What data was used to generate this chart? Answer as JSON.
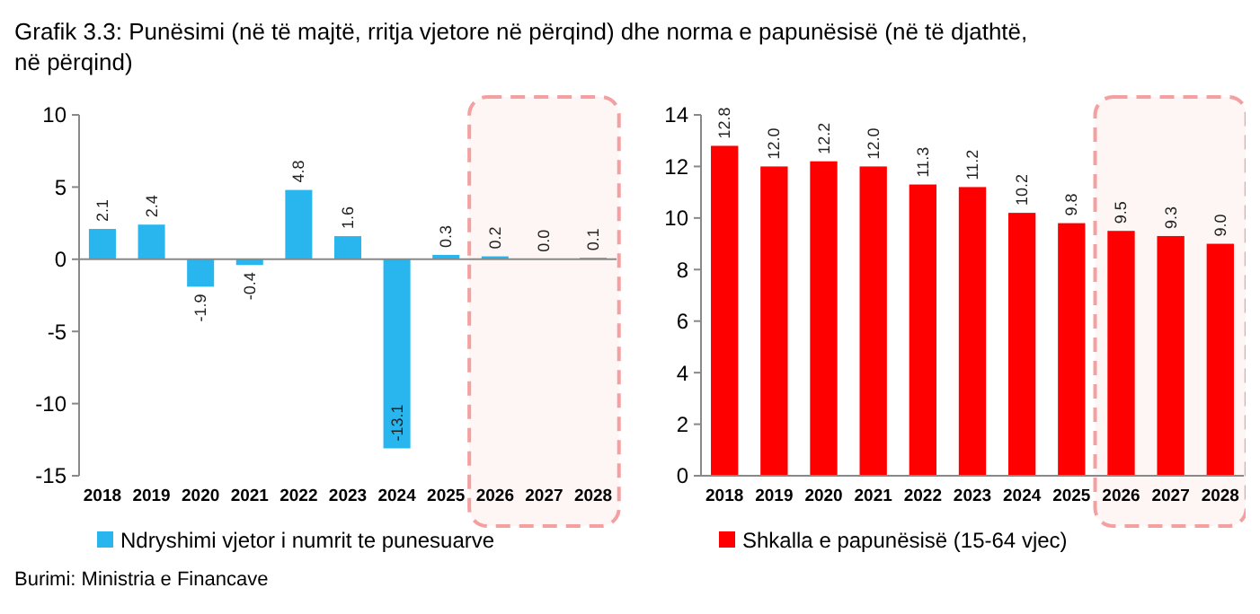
{
  "chart_data": [
    {
      "type": "bar",
      "title": "Grafik 3.3: Punësimi (në të majtë, rritja vjetore në përqind) dhe norma e papunësisë (në të djathtë, në përqind)",
      "annotations": [
        "Burimi: Ministria e Financave"
      ],
      "categories": [
        "2018",
        "2019",
        "2020",
        "2021",
        "2022",
        "2023",
        "2024",
        "2025",
        "2026",
        "2027",
        "2028"
      ],
      "series": [
        {
          "name": "Ndryshimi vjetor i numrit te punesuarve",
          "color": "#29b6ef",
          "values": [
            2.1,
            2.4,
            -1.9,
            -0.4,
            4.8,
            1.6,
            -13.1,
            0.3,
            0.2,
            0.0,
            0.1
          ],
          "value_labels": [
            "2.1",
            "2.4",
            "-1.9",
            "-0.4",
            "4.8",
            "1.6",
            "-13.1",
            "0.3",
            "0.2",
            "0.0",
            "0.1"
          ]
        }
      ],
      "ylim": [
        -15,
        10
      ],
      "yticks": [
        -15,
        -10,
        -5,
        0,
        5,
        10
      ],
      "legend": "bottom",
      "bands": [
        {
          "axis": "x",
          "from": "2026",
          "to": "2028",
          "label": null,
          "color": "#f4a0a0"
        }
      ]
    },
    {
      "type": "bar",
      "categories": [
        "2018",
        "2019",
        "2020",
        "2021",
        "2022",
        "2023",
        "2024",
        "2025",
        "2026",
        "2027",
        "2028"
      ],
      "series": [
        {
          "name": "Shkalla e papunësisë (15-64 vjec)",
          "color": "#ff0000",
          "values": [
            12.8,
            12.0,
            12.2,
            12.0,
            11.3,
            11.2,
            10.2,
            9.8,
            9.5,
            9.3,
            9.0
          ],
          "value_labels": [
            "12.8",
            "12.0",
            "12.2",
            "12.0",
            "11.3",
            "11.2",
            "10.2",
            "9.8",
            "9.5",
            "9.3",
            "9.0"
          ]
        }
      ],
      "ylim": [
        0,
        14
      ],
      "yticks": [
        0,
        2,
        4,
        6,
        8,
        10,
        12,
        14
      ],
      "legend": "bottom",
      "bands": [
        {
          "axis": "x",
          "from": "2026",
          "to": "2028",
          "label": null,
          "color": "#f4a0a0"
        }
      ]
    }
  ]
}
